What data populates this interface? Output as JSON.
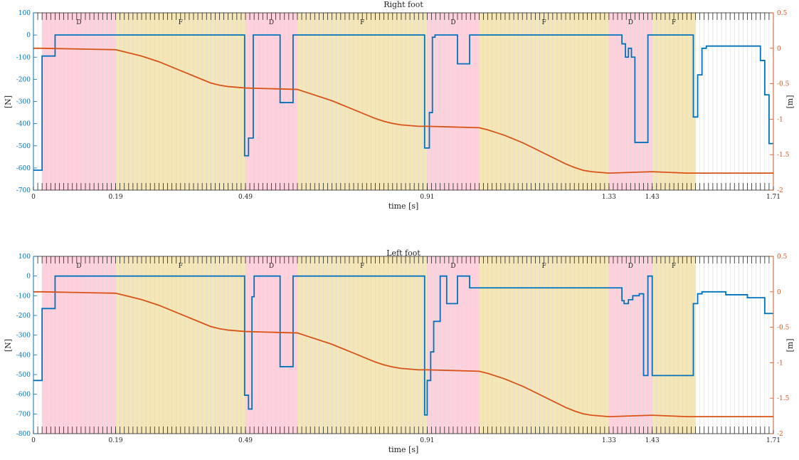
{
  "colors": {
    "force": "#0072BD",
    "height": "#D95319",
    "double_support_fill": "#FFD1DC",
    "single_support_fill": "#F5E6B8",
    "grid": "#d9d9d9",
    "axis": "#262626"
  },
  "chart_data": [
    {
      "type": "line",
      "title": "Right foot",
      "xlabel": "time [s]",
      "ylabel_left": "[N]",
      "ylabel_right": "[m]",
      "xlim": [
        0,
        1.71
      ],
      "xticks": [
        0,
        0.19,
        0.49,
        0.91,
        1.33,
        1.43,
        1.71
      ],
      "xtick_labels": [
        "0",
        "0.19",
        "0.49",
        "0.91",
        "1.33",
        "1.43",
        "1.71"
      ],
      "ylim_left": [
        -700,
        100
      ],
      "yticks_left": [
        100,
        0,
        -100,
        -200,
        -300,
        -400,
        -500,
        -600,
        -700
      ],
      "ylim_right": [
        -2,
        0.5
      ],
      "yticks_right": [
        0.5,
        0,
        -0.5,
        -1,
        -1.5,
        -2
      ],
      "grid": true,
      "phases": [
        {
          "label": "D",
          "start": 0.02,
          "end": 0.19,
          "kind": "double"
        },
        {
          "label": "F",
          "start": 0.19,
          "end": 0.49,
          "kind": "single"
        },
        {
          "label": "D",
          "start": 0.49,
          "end": 0.61,
          "kind": "double"
        },
        {
          "label": "F",
          "start": 0.61,
          "end": 0.91,
          "kind": "single"
        },
        {
          "label": "D",
          "start": 0.91,
          "end": 1.03,
          "kind": "double"
        },
        {
          "label": "F",
          "start": 1.03,
          "end": 1.33,
          "kind": "single"
        },
        {
          "label": "D",
          "start": 1.33,
          "end": 1.43,
          "kind": "double"
        },
        {
          "label": "F",
          "start": 1.43,
          "end": 1.53,
          "kind": "single"
        }
      ],
      "series": [
        {
          "axis": "left",
          "x": [
            0,
            0.02,
            0.02,
            0.05,
            0.05,
            0.488,
            0.488,
            0.497,
            0.497,
            0.508,
            0.508,
            0.57,
            0.57,
            0.6,
            0.6,
            0.904,
            0.904,
            0.915,
            0.915,
            0.922,
            0.922,
            0.928,
            0.928,
            0.98,
            0.98,
            1.008,
            1.008,
            1.36,
            1.36,
            1.368,
            1.368,
            1.375,
            1.375,
            1.382,
            1.382,
            1.39,
            1.39,
            1.42,
            1.42,
            1.43,
            1.43,
            1.525,
            1.525,
            1.535,
            1.535,
            1.545,
            1.545,
            1.555,
            1.555,
            1.68,
            1.68,
            1.69,
            1.69,
            1.7,
            1.7,
            1.71
          ],
          "y": [
            -610,
            -610,
            -95,
            -95,
            0,
            0,
            -545,
            -545,
            -465,
            -465,
            0,
            0,
            -305,
            -305,
            0,
            0,
            -510,
            -510,
            -350,
            -350,
            -10,
            -10,
            0,
            0,
            -130,
            -130,
            0,
            0,
            -40,
            -40,
            -100,
            -100,
            -60,
            -60,
            -100,
            -100,
            -485,
            -485,
            0,
            0,
            0,
            0,
            -370,
            -370,
            -180,
            -180,
            -60,
            -60,
            -50,
            -50,
            -115,
            -115,
            -270,
            -270,
            -490,
            -490
          ]
        },
        {
          "axis": "right",
          "x": [
            0,
            0.02,
            0.19,
            0.21,
            0.23,
            0.25,
            0.27,
            0.29,
            0.31,
            0.33,
            0.35,
            0.37,
            0.39,
            0.41,
            0.43,
            0.45,
            0.47,
            0.49,
            0.61,
            0.63,
            0.65,
            0.67,
            0.69,
            0.71,
            0.73,
            0.75,
            0.77,
            0.79,
            0.81,
            0.83,
            0.85,
            0.87,
            0.89,
            0.91,
            1.03,
            1.05,
            1.07,
            1.09,
            1.11,
            1.13,
            1.15,
            1.17,
            1.19,
            1.21,
            1.23,
            1.25,
            1.27,
            1.29,
            1.31,
            1.33,
            1.43,
            1.45,
            1.47,
            1.49,
            1.51,
            1.53,
            1.71
          ],
          "y": [
            0,
            0,
            -0.02,
            -0.05,
            -0.08,
            -0.11,
            -0.15,
            -0.19,
            -0.24,
            -0.29,
            -0.34,
            -0.39,
            -0.44,
            -0.49,
            -0.52,
            -0.54,
            -0.55,
            -0.56,
            -0.58,
            -0.62,
            -0.66,
            -0.7,
            -0.74,
            -0.79,
            -0.84,
            -0.89,
            -0.94,
            -0.99,
            -1.03,
            -1.06,
            -1.08,
            -1.09,
            -1.1,
            -1.1,
            -1.12,
            -1.15,
            -1.19,
            -1.23,
            -1.28,
            -1.33,
            -1.39,
            -1.45,
            -1.51,
            -1.57,
            -1.63,
            -1.68,
            -1.72,
            -1.74,
            -1.75,
            -1.76,
            -1.74,
            -1.745,
            -1.75,
            -1.755,
            -1.76,
            -1.76,
            -1.76
          ]
        }
      ]
    },
    {
      "type": "line",
      "title": "Left foot",
      "xlabel": "time [s]",
      "ylabel_left": "[N]",
      "ylabel_right": "[m]",
      "xlim": [
        0,
        1.71
      ],
      "xticks": [
        0,
        0.19,
        0.49,
        0.91,
        1.33,
        1.43,
        1.71
      ],
      "xtick_labels": [
        "0",
        "0.19",
        "0.49",
        "0.91",
        "1.33",
        "1.43",
        "1.71"
      ],
      "ylim_left": [
        -800,
        100
      ],
      "yticks_left": [
        100,
        0,
        -100,
        -200,
        -300,
        -400,
        -500,
        -600,
        -700,
        -800
      ],
      "ylim_right": [
        -2,
        0.5
      ],
      "yticks_right": [
        0.5,
        0,
        -0.5,
        -1,
        -1.5,
        -2
      ],
      "grid": true,
      "phases": [
        {
          "label": "D",
          "start": 0.02,
          "end": 0.19,
          "kind": "double"
        },
        {
          "label": "F",
          "start": 0.19,
          "end": 0.49,
          "kind": "single"
        },
        {
          "label": "D",
          "start": 0.49,
          "end": 0.61,
          "kind": "double"
        },
        {
          "label": "F",
          "start": 0.61,
          "end": 0.91,
          "kind": "single"
        },
        {
          "label": "D",
          "start": 0.91,
          "end": 1.03,
          "kind": "double"
        },
        {
          "label": "F",
          "start": 1.03,
          "end": 1.33,
          "kind": "single"
        },
        {
          "label": "D",
          "start": 1.33,
          "end": 1.43,
          "kind": "double"
        },
        {
          "label": "F",
          "start": 1.43,
          "end": 1.53,
          "kind": "single"
        }
      ],
      "series": [
        {
          "axis": "left",
          "x": [
            0,
            0.02,
            0.02,
            0.05,
            0.05,
            0.488,
            0.488,
            0.497,
            0.497,
            0.505,
            0.505,
            0.51,
            0.51,
            0.57,
            0.57,
            0.6,
            0.6,
            0.904,
            0.904,
            0.91,
            0.91,
            0.918,
            0.918,
            0.925,
            0.925,
            0.94,
            0.94,
            0.955,
            0.955,
            0.98,
            0.98,
            1.008,
            1.008,
            1.36,
            1.36,
            1.365,
            1.365,
            1.375,
            1.375,
            1.385,
            1.385,
            1.4,
            1.4,
            1.41,
            1.41,
            1.42,
            1.42,
            1.43,
            1.43,
            1.525,
            1.525,
            1.535,
            1.535,
            1.545,
            1.545,
            1.6,
            1.6,
            1.65,
            1.65,
            1.69,
            1.69,
            1.7,
            1.7,
            1.71
          ],
          "y": [
            -530,
            -530,
            -165,
            -165,
            0,
            0,
            -605,
            -605,
            -675,
            -675,
            -105,
            -105,
            0,
            0,
            -460,
            -460,
            0,
            0,
            -705,
            -705,
            -530,
            -530,
            -385,
            -385,
            -230,
            -230,
            0,
            0,
            -140,
            -140,
            0,
            0,
            -60,
            -60,
            -125,
            -125,
            -140,
            -140,
            -120,
            -120,
            -100,
            -100,
            -90,
            -90,
            -505,
            -505,
            0,
            0,
            -505,
            -505,
            -140,
            -140,
            -90,
            -90,
            -80,
            -80,
            -95,
            -95,
            -110,
            -110,
            -190,
            -190,
            -190,
            -190
          ]
        },
        {
          "axis": "right",
          "x": [
            0,
            0.02,
            0.19,
            0.21,
            0.23,
            0.25,
            0.27,
            0.29,
            0.31,
            0.33,
            0.35,
            0.37,
            0.39,
            0.41,
            0.43,
            0.45,
            0.47,
            0.49,
            0.61,
            0.63,
            0.65,
            0.67,
            0.69,
            0.71,
            0.73,
            0.75,
            0.77,
            0.79,
            0.81,
            0.83,
            0.85,
            0.87,
            0.89,
            0.91,
            1.03,
            1.05,
            1.07,
            1.09,
            1.11,
            1.13,
            1.15,
            1.17,
            1.19,
            1.21,
            1.23,
            1.25,
            1.27,
            1.29,
            1.31,
            1.33,
            1.43,
            1.45,
            1.47,
            1.49,
            1.51,
            1.53,
            1.71
          ],
          "y": [
            0,
            0,
            -0.02,
            -0.05,
            -0.08,
            -0.11,
            -0.15,
            -0.19,
            -0.24,
            -0.29,
            -0.34,
            -0.39,
            -0.44,
            -0.49,
            -0.52,
            -0.54,
            -0.55,
            -0.56,
            -0.58,
            -0.62,
            -0.66,
            -0.7,
            -0.74,
            -0.79,
            -0.84,
            -0.89,
            -0.94,
            -0.99,
            -1.03,
            -1.06,
            -1.08,
            -1.09,
            -1.1,
            -1.1,
            -1.12,
            -1.15,
            -1.19,
            -1.23,
            -1.28,
            -1.33,
            -1.39,
            -1.45,
            -1.51,
            -1.57,
            -1.63,
            -1.68,
            -1.72,
            -1.74,
            -1.75,
            -1.76,
            -1.74,
            -1.745,
            -1.75,
            -1.755,
            -1.76,
            -1.76,
            -1.76
          ]
        }
      ]
    }
  ]
}
